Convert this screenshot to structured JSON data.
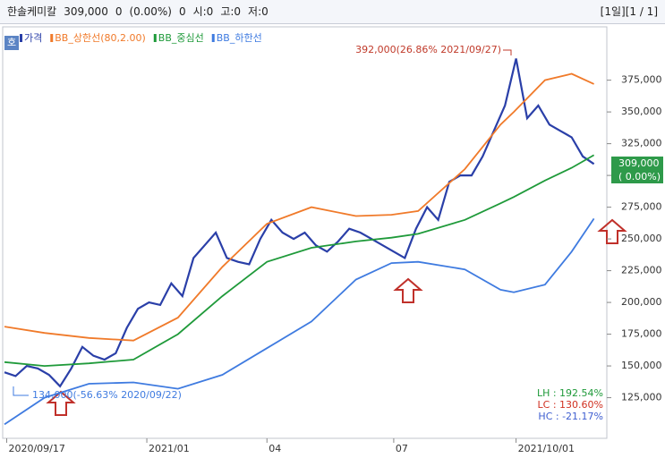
{
  "header": {
    "fields": [
      "한솔케미칼",
      "309,000",
      "0",
      "(0.00%)",
      "0",
      "시:0",
      "고:0",
      "저:0"
    ],
    "right": "[1일][1 / 1]"
  },
  "button": "호",
  "chart_data": {
    "type": "line",
    "legend": [
      "가격",
      "BB_상한선(80,2.00)",
      "BB_중심선",
      "BB_하한선"
    ],
    "xlim": [
      0,
      270
    ],
    "xticks": [
      {
        "value": 1,
        "label": "2020/09/17"
      },
      {
        "value": 64,
        "label": "2021/01"
      },
      {
        "value": 118,
        "label": "04"
      },
      {
        "value": 175,
        "label": "07"
      },
      {
        "value": 230,
        "label": "2021/10/01"
      }
    ],
    "ylim": [
      93000,
      417000
    ],
    "yticks": [
      {
        "value": 125000,
        "label": "125,000"
      },
      {
        "value": 150000,
        "label": "150,000"
      },
      {
        "value": 175000,
        "label": "175,000"
      },
      {
        "value": 200000,
        "label": "200,000"
      },
      {
        "value": 225000,
        "label": "225,000"
      },
      {
        "value": 250000,
        "label": "250,000"
      },
      {
        "value": 275000,
        "label": "275,000"
      },
      {
        "value": 300000,
        "label": "300,000"
      },
      {
        "value": 325000,
        "label": "325,000"
      },
      {
        "value": 350000,
        "label": "350,000"
      },
      {
        "value": 375000,
        "label": "375,000"
      }
    ],
    "series": [
      {
        "name": "가격",
        "color": "#2a3fa8",
        "x": [
          0,
          5,
          10,
          15,
          20,
          25,
          30,
          35,
          40,
          45,
          50,
          55,
          60,
          65,
          70,
          75,
          80,
          85,
          90,
          95,
          100,
          105,
          110,
          115,
          120,
          125,
          130,
          135,
          140,
          145,
          150,
          155,
          160,
          165,
          170,
          175,
          180,
          185,
          190,
          195,
          200,
          205,
          210,
          215,
          220,
          225,
          230,
          235,
          240,
          245,
          250,
          255,
          260,
          265
        ],
        "values": [
          145000,
          142000,
          150000,
          148000,
          143000,
          134000,
          148000,
          165000,
          158000,
          155000,
          160000,
          180000,
          195000,
          200000,
          198000,
          215000,
          205000,
          235000,
          245000,
          255000,
          235000,
          232000,
          230000,
          250000,
          265000,
          255000,
          250000,
          255000,
          245000,
          240000,
          248000,
          258000,
          255000,
          250000,
          245000,
          240000,
          235000,
          258000,
          275000,
          265000,
          295000,
          300000,
          300000,
          315000,
          335000,
          355000,
          392000,
          345000,
          355000,
          340000,
          335000,
          330000,
          315000,
          309000
        ]
      },
      {
        "name": "BB_상한선(80,2.00)",
        "color": "#f07a2a",
        "x": [
          0,
          18,
          38,
          58,
          78,
          98,
          118,
          138,
          158,
          174,
          186,
          207,
          223,
          229,
          243,
          255,
          265
        ],
        "values": [
          181000,
          176000,
          172000,
          170000,
          188000,
          228000,
          262000,
          275000,
          268000,
          269000,
          272000,
          305000,
          340000,
          350000,
          375000,
          380000,
          372000
        ]
      },
      {
        "name": "BB_중심선",
        "color": "#1f9a3a",
        "x": [
          0,
          18,
          38,
          58,
          78,
          98,
          118,
          138,
          158,
          174,
          186,
          207,
          223,
          229,
          243,
          255,
          265
        ],
        "values": [
          153000,
          150000,
          152000,
          155000,
          175000,
          205000,
          232000,
          243000,
          248000,
          251000,
          254000,
          265000,
          278000,
          283000,
          296000,
          306000,
          316000
        ]
      },
      {
        "name": "BB_하한선",
        "color": "#3f7be0",
        "x": [
          0,
          18,
          38,
          58,
          78,
          98,
          118,
          138,
          158,
          174,
          186,
          207,
          223,
          229,
          243,
          255,
          265
        ],
        "values": [
          104000,
          125000,
          136000,
          137000,
          132000,
          143000,
          164000,
          185000,
          218000,
          231000,
          232000,
          226000,
          210000,
          208000,
          214000,
          240000,
          266000
        ]
      }
    ],
    "annotations": [
      "392,000(26.86% 2021/09/27)",
      "134,000(-56.63% 2020/09/22)"
    ],
    "last_label": [
      "309,000",
      "( 0.00%)"
    ],
    "stats": [
      {
        "text": "LH :  192.54%",
        "color": "#1f9a3a"
      },
      {
        "text": "LC :  130.60%",
        "color": "#d03020"
      },
      {
        "text": "HC :  -21.17%",
        "color": "#3f5fd0"
      }
    ]
  }
}
